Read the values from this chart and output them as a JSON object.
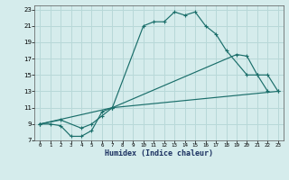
{
  "xlabel": "Humidex (Indice chaleur)",
  "bg_color": "#d5ecec",
  "grid_color": "#b8d8d8",
  "line_color": "#1a6e6a",
  "xlim": [
    -0.5,
    23.5
  ],
  "ylim": [
    7,
    23.5
  ],
  "xticks": [
    0,
    1,
    2,
    3,
    4,
    5,
    6,
    7,
    8,
    9,
    10,
    11,
    12,
    13,
    14,
    15,
    16,
    17,
    18,
    19,
    20,
    21,
    22,
    23
  ],
  "yticks": [
    7,
    9,
    11,
    13,
    15,
    17,
    19,
    21,
    23
  ],
  "line1": {
    "x": [
      0,
      1,
      2,
      3,
      4,
      5,
      6,
      7,
      10,
      11,
      12,
      13,
      14,
      15,
      16,
      17,
      18,
      20,
      21,
      22
    ],
    "y": [
      9,
      9,
      8.8,
      7.5,
      7.5,
      8.2,
      10.5,
      11,
      21,
      21.5,
      21.5,
      22.7,
      22.3,
      22.7,
      21,
      20,
      18,
      15,
      15,
      13
    ]
  },
  "line2": {
    "x": [
      0,
      2,
      4,
      5,
      6,
      7,
      23
    ],
    "y": [
      9,
      9.5,
      8.5,
      9,
      10,
      11,
      13
    ]
  },
  "line3": {
    "x": [
      0,
      7,
      19,
      20,
      21,
      22,
      23
    ],
    "y": [
      9,
      11,
      17.5,
      17.3,
      15,
      15,
      13
    ]
  }
}
